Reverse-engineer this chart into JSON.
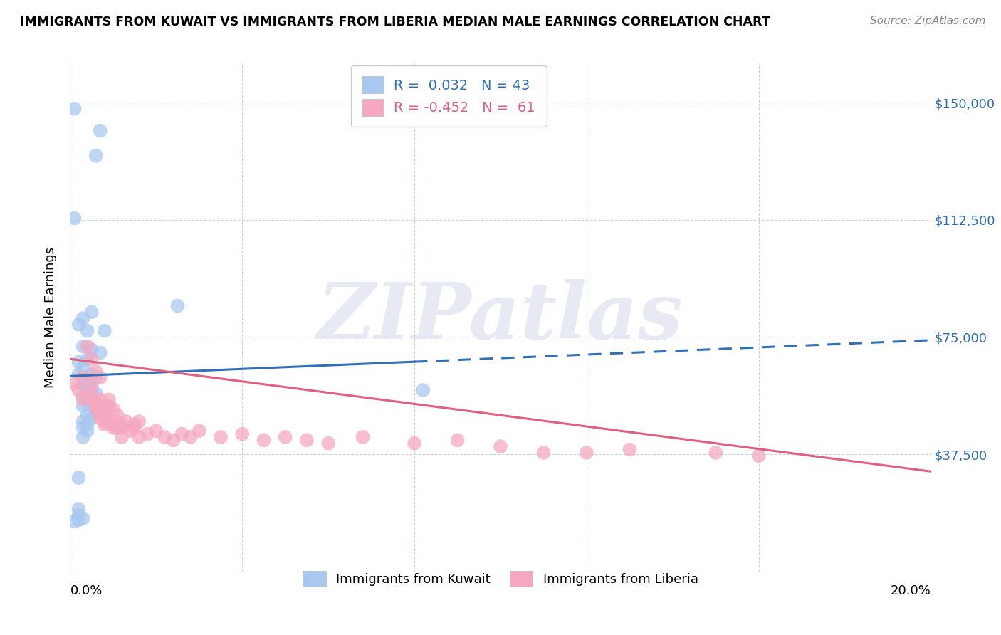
{
  "title": "IMMIGRANTS FROM KUWAIT VS IMMIGRANTS FROM LIBERIA MEDIAN MALE EARNINGS CORRELATION CHART",
  "source": "Source: ZipAtlas.com",
  "ylabel": "Median Male Earnings",
  "xlim": [
    0.0,
    0.2
  ],
  "ylim": [
    0,
    162500
  ],
  "yticks": [
    0,
    37500,
    75000,
    112500,
    150000
  ],
  "ytick_labels": [
    "",
    "$37,500",
    "$75,000",
    "$112,500",
    "$150,000"
  ],
  "xticks": [
    0.0,
    0.04,
    0.08,
    0.12,
    0.16,
    0.2
  ],
  "kuwait_R": 0.032,
  "kuwait_N": 43,
  "liberia_R": -0.452,
  "liberia_N": 61,
  "kuwait_color": "#a8c8f0",
  "liberia_color": "#f5a8c0",
  "kuwait_line_color": "#3070b8",
  "liberia_line_color": "#e06080",
  "kuwait_line_solid_end": 0.08,
  "kuwait_line_x0": 0.0,
  "kuwait_line_y0": 62500,
  "kuwait_line_x1": 0.2,
  "kuwait_line_y1": 74000,
  "liberia_line_x0": 0.0,
  "liberia_line_y0": 68000,
  "liberia_line_x1": 0.2,
  "liberia_line_y1": 32000,
  "watermark_text": "ZIPatlas",
  "background_color": "#ffffff",
  "grid_color": "#c8d4e8",
  "legend_text_color": "#3070b8",
  "kuwait_scatter_x": [
    0.001,
    0.007,
    0.006,
    0.001,
    0.003,
    0.005,
    0.002,
    0.004,
    0.008,
    0.003,
    0.005,
    0.007,
    0.004,
    0.002,
    0.003,
    0.005,
    0.006,
    0.004,
    0.003,
    0.005,
    0.004,
    0.006,
    0.003,
    0.005,
    0.004,
    0.003,
    0.006,
    0.004,
    0.005,
    0.003,
    0.004,
    0.003,
    0.025,
    0.004,
    0.003,
    0.002,
    0.002,
    0.002,
    0.082,
    0.002,
    0.001,
    0.002,
    0.003
  ],
  "kuwait_scatter_y": [
    148000,
    141000,
    133000,
    113000,
    81000,
    83000,
    79000,
    77000,
    77000,
    72000,
    71000,
    70000,
    68000,
    67000,
    65000,
    63000,
    62000,
    61000,
    60000,
    59000,
    58000,
    57000,
    56000,
    55000,
    54000,
    53000,
    52000,
    50000,
    49000,
    48000,
    47000,
    46000,
    85000,
    45000,
    43000,
    30000,
    20000,
    18000,
    58000,
    63000,
    16000,
    16500,
    17000
  ],
  "liberia_scatter_x": [
    0.001,
    0.002,
    0.003,
    0.004,
    0.003,
    0.005,
    0.006,
    0.004,
    0.005,
    0.006,
    0.007,
    0.005,
    0.006,
    0.007,
    0.008,
    0.006,
    0.007,
    0.008,
    0.009,
    0.008,
    0.007,
    0.008,
    0.009,
    0.01,
    0.009,
    0.01,
    0.011,
    0.01,
    0.011,
    0.012,
    0.011,
    0.012,
    0.013,
    0.012,
    0.014,
    0.015,
    0.016,
    0.015,
    0.016,
    0.018,
    0.02,
    0.022,
    0.024,
    0.026,
    0.028,
    0.03,
    0.035,
    0.04,
    0.045,
    0.05,
    0.055,
    0.06,
    0.068,
    0.08,
    0.09,
    0.1,
    0.11,
    0.12,
    0.13,
    0.15,
    0.16
  ],
  "liberia_scatter_y": [
    60000,
    58000,
    62000,
    72000,
    55000,
    57000,
    54000,
    56000,
    60000,
    53000,
    55000,
    68000,
    52000,
    50000,
    51000,
    64000,
    49000,
    50000,
    55000,
    48000,
    62000,
    47000,
    53000,
    46000,
    48000,
    47000,
    46000,
    52000,
    48000,
    47000,
    50000,
    46000,
    48000,
    43000,
    45000,
    47000,
    43000,
    46000,
    48000,
    44000,
    45000,
    43000,
    42000,
    44000,
    43000,
    45000,
    43000,
    44000,
    42000,
    43000,
    42000,
    41000,
    43000,
    41000,
    42000,
    40000,
    38000,
    38000,
    39000,
    38000,
    37000
  ]
}
